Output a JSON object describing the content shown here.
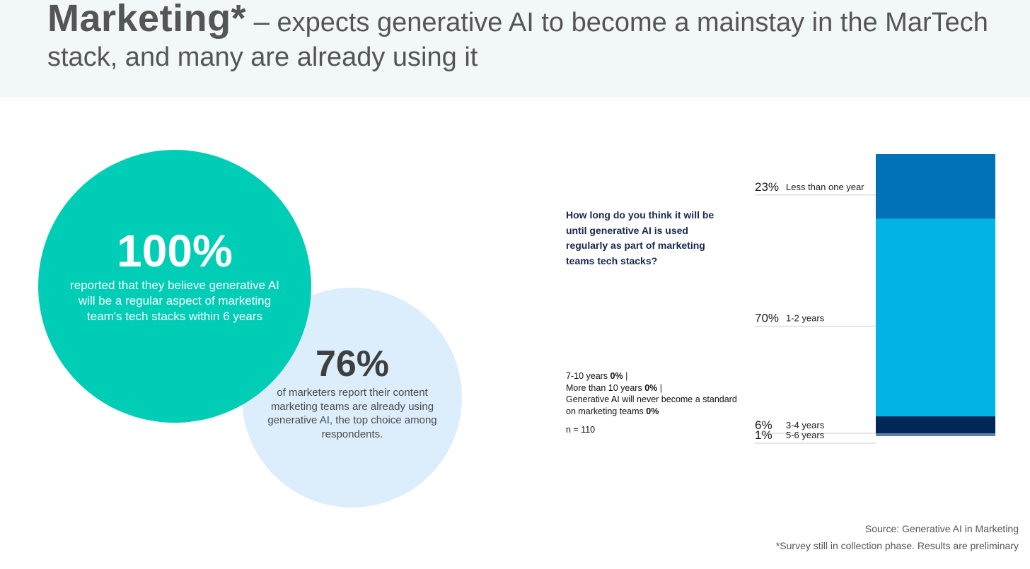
{
  "header": {
    "title_bold": "Marketing*",
    "title_dash": "–",
    "title_rest": " expects generative AI to become a mainstay in the MarTech stack, and many are already using it"
  },
  "stats": {
    "primary": {
      "value": "100%",
      "text": "reported that they believe generative AI will be a regular aspect of marketing team's tech stacks within 6 years"
    },
    "secondary": {
      "value": "76%",
      "text": "of marketers report their content marketing teams are already using generative AI, the top choice among respondents."
    }
  },
  "question": "How long do you think it will be until generative AI is used regularly as part of marketing teams tech stacks?",
  "other_answers": [
    {
      "label": "7-10 years",
      "value": "0%",
      "sep": " |"
    },
    {
      "label": "More than 10 years",
      "value": "0%",
      "sep": " |"
    },
    {
      "label": "Generative AI will never become a standard on marketing teams",
      "value": "0%",
      "sep": ""
    }
  ],
  "sample": "n = 110",
  "chart_data": {
    "type": "bar",
    "orientation": "stacked-vertical-single",
    "title": "How long do you think it will be until generative AI is used regularly as part of marketing teams tech stacks?",
    "categories": [
      "Less than one year",
      "1-2 years",
      "3-4 years",
      "5-6 years"
    ],
    "values": [
      23,
      70,
      6,
      1
    ],
    "labels": [
      "23%",
      "70%",
      "6%",
      "1%"
    ],
    "colors": [
      "#0172b6",
      "#00b4e6",
      "#012756",
      "#5e80a8"
    ],
    "unit": "%",
    "legend": "left-of-bar"
  },
  "source": {
    "line1": "Source: Generative AI in Marketing",
    "line2": "*Survey still in collection phase. Results are preliminary"
  }
}
